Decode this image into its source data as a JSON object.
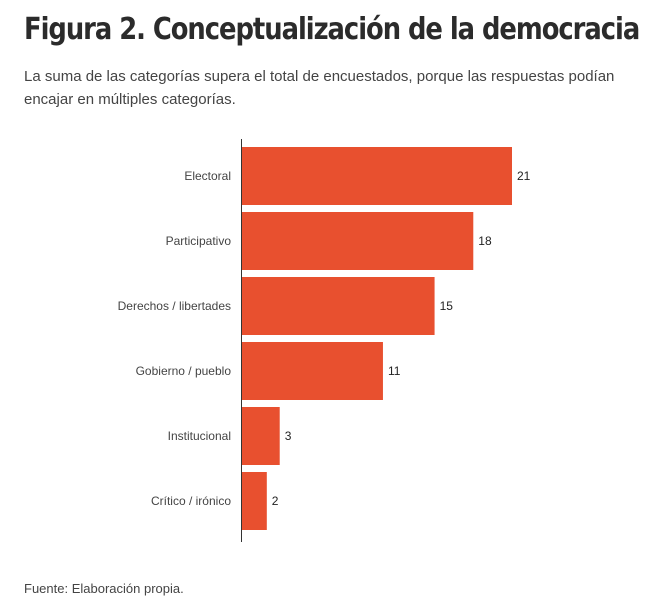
{
  "chart_data": {
    "type": "bar",
    "orientation": "horizontal",
    "title": "Figura 2. Conceptualización de la democracia",
    "subtitle": "La suma de las categorías supera el total de encuestados, porque las respuestas podían encajar en múltiples categorías.",
    "categories": [
      "Electoral",
      "Participativo",
      "Derechos / libertades",
      "Gobierno / pueblo",
      "Institucional",
      "Crítico / irónico"
    ],
    "values": [
      21,
      18,
      15,
      11,
      3,
      2
    ],
    "value_labels": [
      "21",
      "18",
      "15",
      "11",
      "3",
      "2"
    ],
    "xlim": [
      0,
      21
    ],
    "xlabel": "",
    "ylabel": "",
    "grid": false,
    "bar_color": "#e8502f",
    "source": "Fuente: Elaboración propia."
  }
}
